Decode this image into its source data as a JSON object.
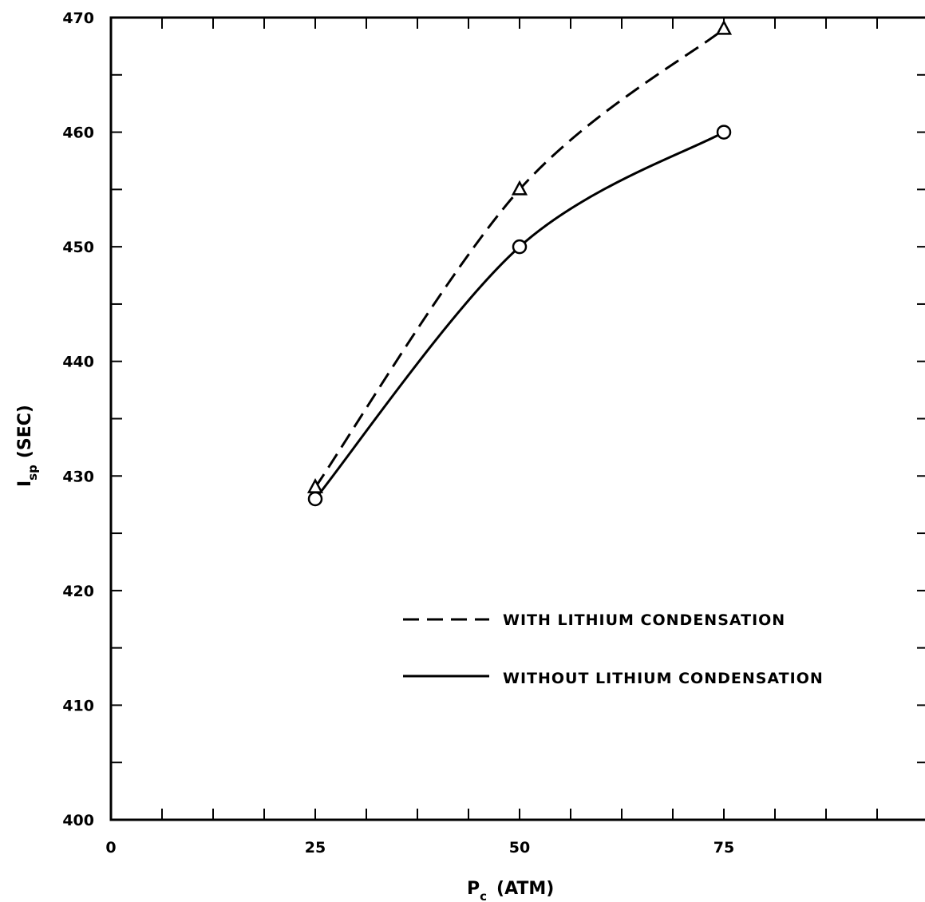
{
  "chart_data": {
    "type": "line",
    "title": "",
    "xlabel": {
      "main": "P",
      "sub": "c",
      "unit": "(ATM)"
    },
    "ylabel": {
      "main": "I",
      "sub": "sp",
      "unit": "(SEC)"
    },
    "xlim": [
      0,
      100
    ],
    "ylim": [
      400,
      470
    ],
    "x_tick_labels": [
      0,
      25,
      50,
      75
    ],
    "x_minor_ticks": [
      0,
      6.25,
      12.5,
      18.75,
      25,
      31.25,
      37.5,
      43.75,
      50,
      56.25,
      62.5,
      68.75,
      75,
      81.25,
      87.5,
      93.75
    ],
    "y_tick_labels": [
      400,
      410,
      420,
      430,
      440,
      450,
      460,
      470
    ],
    "y_minor_ticks": [
      400,
      405,
      410,
      415,
      420,
      425,
      430,
      435,
      440,
      445,
      450,
      455,
      460,
      465,
      470
    ],
    "grid": false,
    "legend_position": "lower-right",
    "series": [
      {
        "name": "WITH LITHIUM CONDENSATION",
        "style": "dashed",
        "marker": "triangle",
        "x": [
          25,
          50,
          75
        ],
        "y": [
          429,
          455,
          469
        ]
      },
      {
        "name": "WITHOUT LITHIUM CONDENSATION",
        "style": "solid",
        "marker": "circle",
        "x": [
          25,
          50,
          75
        ],
        "y": [
          428,
          450,
          460
        ]
      }
    ]
  },
  "colors": {
    "ink": "#000000",
    "background": "#ffffff"
  }
}
